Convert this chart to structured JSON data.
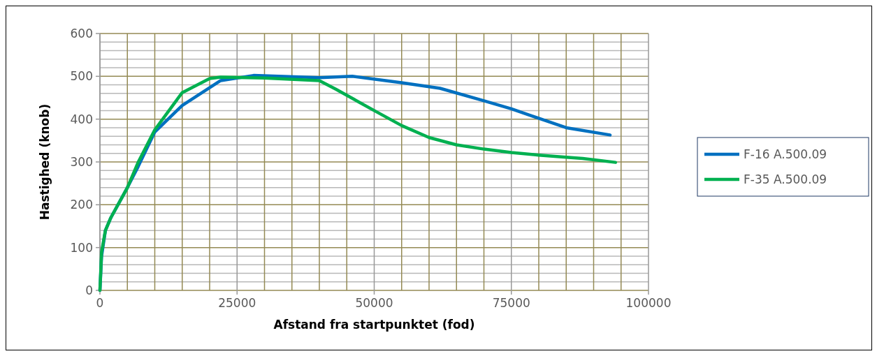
{
  "chart_data": {
    "type": "line",
    "xlabel": "Afstand fra startpunktet (fod)",
    "ylabel": "Hastighed (knob)",
    "xlim": [
      0,
      100000
    ],
    "xticks": [
      0,
      25000,
      50000,
      75000,
      100000
    ],
    "ylim": [
      0,
      600
    ],
    "yticks": [
      0,
      100,
      200,
      300,
      400,
      500,
      600
    ],
    "grid": true,
    "legend": "right",
    "marker": "none",
    "line_style": "solid",
    "series": [
      {
        "name": "F-16 A.500.09",
        "color": "#0070c0",
        "x": [
          0,
          300,
          1000,
          2000,
          5000,
          7000,
          10000,
          15000,
          22000,
          28000,
          40000,
          46000,
          55000,
          62000,
          70000,
          75000,
          85000,
          93000
        ],
        "values": [
          0,
          80,
          140,
          170,
          240,
          290,
          370,
          432,
          490,
          502,
          497,
          500,
          485,
          472,
          443,
          424,
          380,
          363
        ]
      },
      {
        "name": "F-35 A.500.09",
        "color": "#00b050",
        "x": [
          0,
          300,
          1000,
          2000,
          5000,
          7000,
          10000,
          15000,
          20000,
          22000,
          30000,
          40000,
          43000,
          50000,
          55000,
          60000,
          65000,
          70000,
          75000,
          80000,
          85000,
          88000,
          94000
        ],
        "values": [
          0,
          90,
          140,
          170,
          240,
          300,
          375,
          462,
          495,
          498,
          496,
          490,
          470,
          420,
          385,
          357,
          340,
          330,
          322,
          316,
          311,
          308,
          299
        ]
      }
    ]
  }
}
